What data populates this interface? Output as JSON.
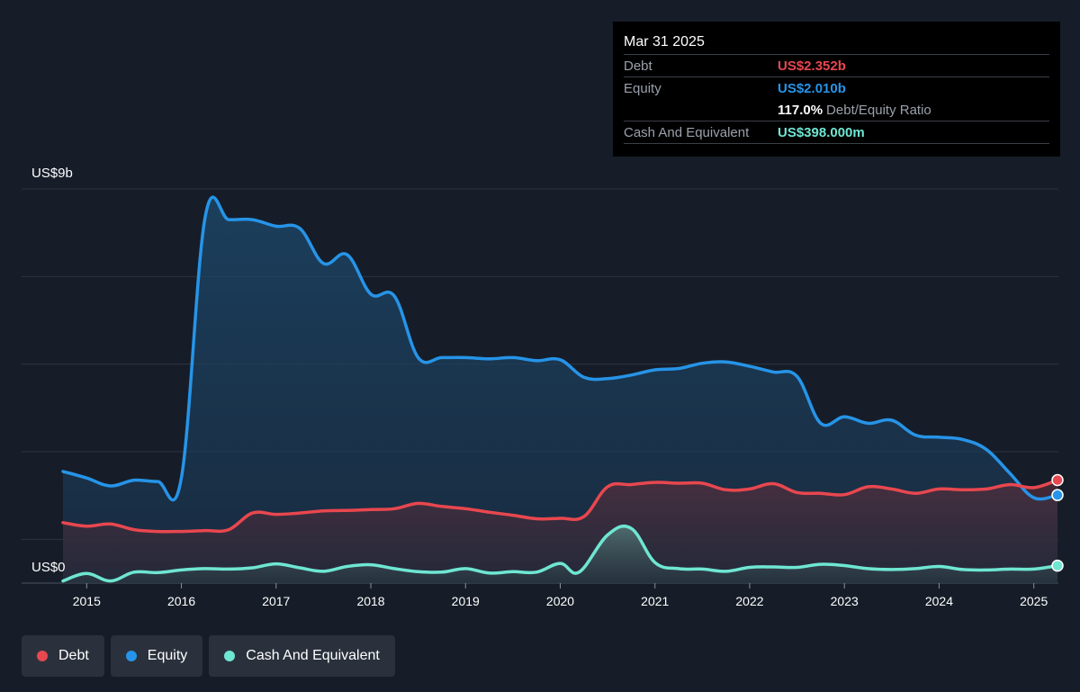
{
  "tooltip": {
    "date": "Mar 31 2025",
    "rows": [
      {
        "label": "Debt",
        "value": "US$2.352b",
        "color": "#e8474f"
      },
      {
        "label": "Equity",
        "value": "US$2.010b",
        "color": "#2694e8"
      },
      {
        "label": "",
        "value": "117.0%",
        "suffix": "Debt/Equity Ratio",
        "color": "#ffffff"
      },
      {
        "label": "Cash And Equivalent",
        "value": "US$398.000m",
        "color": "#6fe6d2"
      }
    ]
  },
  "legend": [
    {
      "label": "Debt",
      "color": "#e8474f"
    },
    {
      "label": "Equity",
      "color": "#2694e8"
    },
    {
      "label": "Cash And Equivalent",
      "color": "#6fe6d2"
    }
  ],
  "chart_data": {
    "type": "area",
    "y_top_label": "US$9b",
    "y_bottom_label": "US$0",
    "ylim": [
      0,
      9
    ],
    "xlim": [
      2014.75,
      2025.25
    ],
    "x_ticks": [
      "2015",
      "2016",
      "2017",
      "2018",
      "2019",
      "2020",
      "2021",
      "2022",
      "2023",
      "2024",
      "2025"
    ],
    "series": [
      {
        "name": "Equity",
        "color": "#2694e8",
        "points": [
          [
            2014.75,
            2.55
          ],
          [
            2015.0,
            2.4
          ],
          [
            2015.25,
            2.22
          ],
          [
            2015.5,
            2.35
          ],
          [
            2015.75,
            2.32
          ],
          [
            2016.0,
            2.4
          ],
          [
            2016.25,
            8.35
          ],
          [
            2016.5,
            8.3
          ],
          [
            2016.75,
            8.3
          ],
          [
            2017.0,
            8.15
          ],
          [
            2017.25,
            8.1
          ],
          [
            2017.5,
            7.3
          ],
          [
            2017.75,
            7.5
          ],
          [
            2018.0,
            6.6
          ],
          [
            2018.25,
            6.55
          ],
          [
            2018.5,
            5.15
          ],
          [
            2018.75,
            5.15
          ],
          [
            2019.0,
            5.15
          ],
          [
            2019.25,
            5.12
          ],
          [
            2019.5,
            5.15
          ],
          [
            2019.75,
            5.08
          ],
          [
            2020.0,
            5.1
          ],
          [
            2020.25,
            4.7
          ],
          [
            2020.5,
            4.67
          ],
          [
            2020.75,
            4.75
          ],
          [
            2021.0,
            4.87
          ],
          [
            2021.25,
            4.9
          ],
          [
            2021.5,
            5.02
          ],
          [
            2021.75,
            5.05
          ],
          [
            2022.0,
            4.95
          ],
          [
            2022.25,
            4.82
          ],
          [
            2022.5,
            4.72
          ],
          [
            2022.75,
            3.65
          ],
          [
            2023.0,
            3.8
          ],
          [
            2023.25,
            3.65
          ],
          [
            2023.5,
            3.72
          ],
          [
            2023.75,
            3.38
          ],
          [
            2024.0,
            3.33
          ],
          [
            2024.25,
            3.28
          ],
          [
            2024.5,
            3.05
          ],
          [
            2024.75,
            2.5
          ],
          [
            2025.0,
            1.95
          ],
          [
            2025.25,
            2.01
          ]
        ]
      },
      {
        "name": "Debt",
        "color": "#e8474f",
        "points": [
          [
            2014.75,
            1.38
          ],
          [
            2015.0,
            1.3
          ],
          [
            2015.25,
            1.35
          ],
          [
            2015.5,
            1.22
          ],
          [
            2015.75,
            1.18
          ],
          [
            2016.0,
            1.18
          ],
          [
            2016.25,
            1.2
          ],
          [
            2016.5,
            1.22
          ],
          [
            2016.75,
            1.6
          ],
          [
            2017.0,
            1.57
          ],
          [
            2017.25,
            1.6
          ],
          [
            2017.5,
            1.65
          ],
          [
            2017.75,
            1.66
          ],
          [
            2018.0,
            1.68
          ],
          [
            2018.25,
            1.7
          ],
          [
            2018.5,
            1.82
          ],
          [
            2018.75,
            1.75
          ],
          [
            2019.0,
            1.7
          ],
          [
            2019.25,
            1.62
          ],
          [
            2019.5,
            1.55
          ],
          [
            2019.75,
            1.47
          ],
          [
            2020.0,
            1.48
          ],
          [
            2020.25,
            1.52
          ],
          [
            2020.5,
            2.2
          ],
          [
            2020.75,
            2.25
          ],
          [
            2021.0,
            2.3
          ],
          [
            2021.25,
            2.28
          ],
          [
            2021.5,
            2.28
          ],
          [
            2021.75,
            2.13
          ],
          [
            2022.0,
            2.15
          ],
          [
            2022.25,
            2.27
          ],
          [
            2022.5,
            2.07
          ],
          [
            2022.75,
            2.05
          ],
          [
            2023.0,
            2.02
          ],
          [
            2023.25,
            2.2
          ],
          [
            2023.5,
            2.15
          ],
          [
            2023.75,
            2.05
          ],
          [
            2024.0,
            2.15
          ],
          [
            2024.25,
            2.13
          ],
          [
            2024.5,
            2.15
          ],
          [
            2024.75,
            2.25
          ],
          [
            2025.0,
            2.18
          ],
          [
            2025.25,
            2.352
          ]
        ]
      },
      {
        "name": "Cash And Equivalent",
        "color": "#6fe6d2",
        "points": [
          [
            2014.75,
            0.05
          ],
          [
            2015.0,
            0.22
          ],
          [
            2015.25,
            0.05
          ],
          [
            2015.5,
            0.25
          ],
          [
            2015.75,
            0.24
          ],
          [
            2016.0,
            0.3
          ],
          [
            2016.25,
            0.33
          ],
          [
            2016.5,
            0.32
          ],
          [
            2016.75,
            0.35
          ],
          [
            2017.0,
            0.44
          ],
          [
            2017.25,
            0.35
          ],
          [
            2017.5,
            0.27
          ],
          [
            2017.75,
            0.38
          ],
          [
            2018.0,
            0.42
          ],
          [
            2018.25,
            0.33
          ],
          [
            2018.5,
            0.26
          ],
          [
            2018.75,
            0.25
          ],
          [
            2019.0,
            0.33
          ],
          [
            2019.25,
            0.23
          ],
          [
            2019.5,
            0.26
          ],
          [
            2019.75,
            0.25
          ],
          [
            2020.0,
            0.45
          ],
          [
            2020.2,
            0.25
          ],
          [
            2020.5,
            1.1
          ],
          [
            2020.75,
            1.25
          ],
          [
            2021.0,
            0.47
          ],
          [
            2021.25,
            0.33
          ],
          [
            2021.5,
            0.32
          ],
          [
            2021.75,
            0.27
          ],
          [
            2022.0,
            0.36
          ],
          [
            2022.25,
            0.37
          ],
          [
            2022.5,
            0.36
          ],
          [
            2022.75,
            0.43
          ],
          [
            2023.0,
            0.4
          ],
          [
            2023.25,
            0.33
          ],
          [
            2023.5,
            0.31
          ],
          [
            2023.75,
            0.33
          ],
          [
            2024.0,
            0.38
          ],
          [
            2024.25,
            0.31
          ],
          [
            2024.5,
            0.3
          ],
          [
            2024.75,
            0.32
          ],
          [
            2025.0,
            0.32
          ],
          [
            2025.25,
            0.398
          ]
        ]
      }
    ],
    "grid": true,
    "legend_position": "bottom-left"
  }
}
